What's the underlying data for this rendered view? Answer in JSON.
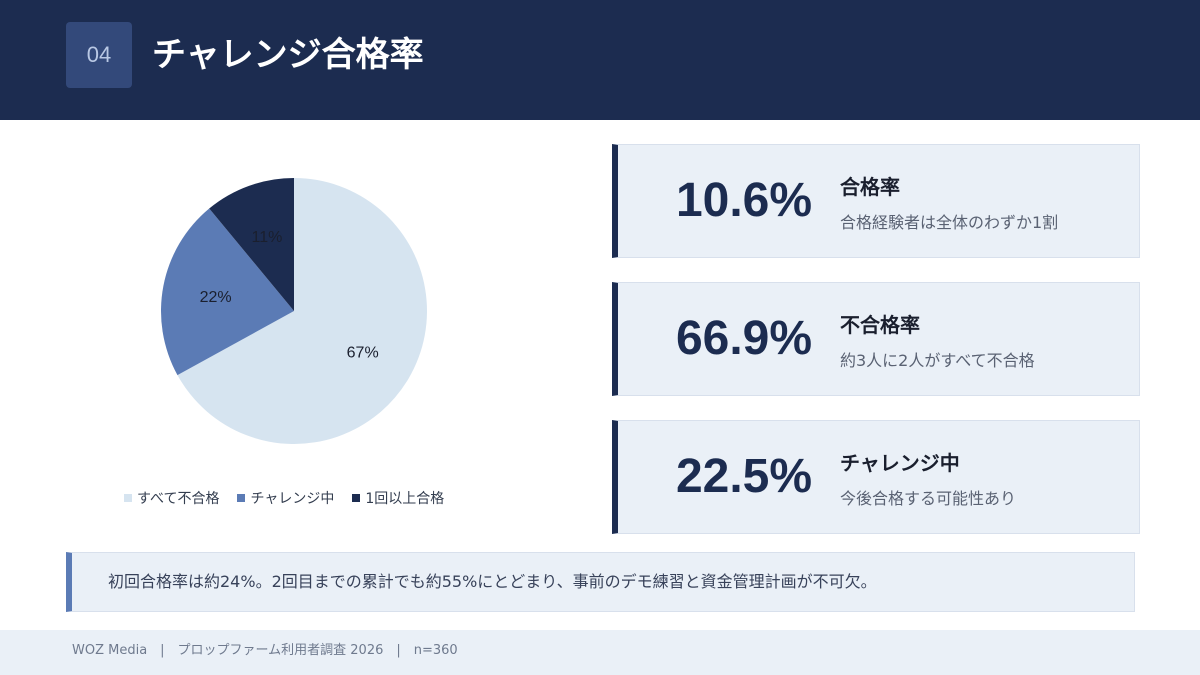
{
  "header": {
    "badge": "04",
    "title": "チャレンジ合格率"
  },
  "chart_data": {
    "type": "pie",
    "categories": [
      "すべて不合格",
      "チャレンジ中",
      "1回以上合格"
    ],
    "values": [
      67,
      22,
      11
    ],
    "labels": [
      "67%",
      "22%",
      "11%"
    ],
    "colors": [
      "#d6e4f0",
      "#5b7bb5",
      "#1c2c50"
    ],
    "legend_position": "bottom"
  },
  "stats": [
    {
      "value": "10.6%",
      "label": "合格率",
      "desc": "合格経験者は全体のわずか1割"
    },
    {
      "value": "66.9%",
      "label": "不合格率",
      "desc": "約3人に2人がすべて不合格"
    },
    {
      "value": "22.5%",
      "label": "チャレンジ中",
      "desc": "今後合格する可能性あり"
    }
  ],
  "note": "初回合格率は約24%。2回目までの累計でも約55%にとどまり、事前のデモ練習と資金管理計画が不可欠。",
  "footer": "WOZ Media　|　プロップファーム利用者調査 2026　|　n=360"
}
